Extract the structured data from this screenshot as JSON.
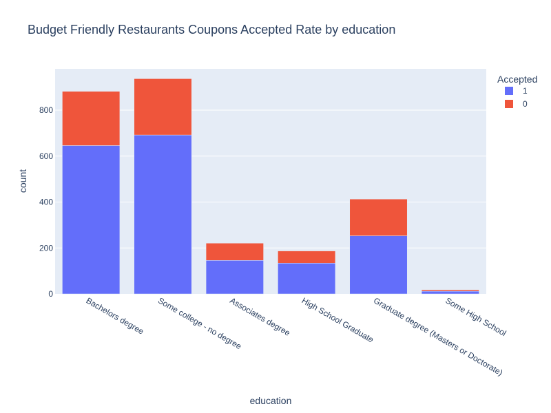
{
  "chart_data": {
    "type": "bar",
    "stacked": true,
    "title": "Budget Friendly Restaurants Coupons Accepted Rate by education",
    "xlabel": "education",
    "ylabel": "count",
    "ylim": [
      0,
      980
    ],
    "yticks": [
      0,
      200,
      400,
      600,
      800
    ],
    "grid": true,
    "legend_title": "Accepted",
    "legend_position": "top-right",
    "categories": [
      "Bachelors degree",
      "Some college - no degree",
      "Associates degree",
      "High School Graduate",
      "Graduate degree (Masters or Doctorate)",
      "Some High School"
    ],
    "series": [
      {
        "name": "1",
        "color": "#636efa",
        "values": [
          646,
          692,
          146,
          134,
          253,
          12
        ]
      },
      {
        "name": "0",
        "color": "#ef553b",
        "values": [
          236,
          245,
          75,
          53,
          160,
          6
        ]
      }
    ]
  }
}
